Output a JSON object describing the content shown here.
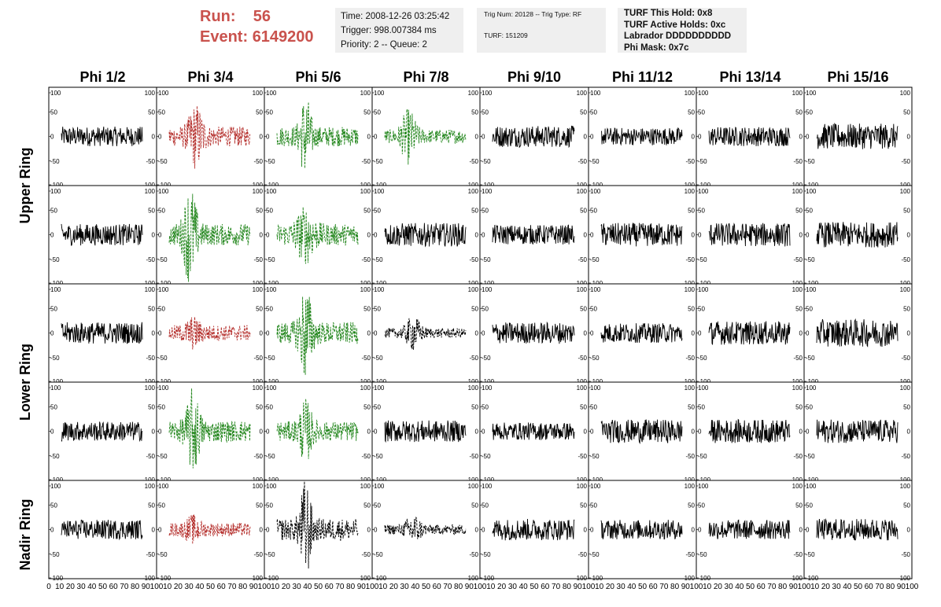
{
  "header": {
    "run_label": "Run:",
    "run_value": "56",
    "event_label": "Event:",
    "event_value": "6149200"
  },
  "info_time": {
    "line1": "Time: 2008-12-26 03:25:42",
    "line2": "Trigger: 998.007384 ms",
    "line3": "Priority: 2 -- Queue: 2"
  },
  "info_trig": {
    "line1": "Trig Num: 20128 -- Trig Type: RF",
    "line2": "TURF: 151209"
  },
  "info_turf": {
    "line1": "TURF This Hold: 0x8",
    "line2": "TURF Active Holds: 0xc",
    "line3": "Labrador DDDDDDDDDD",
    "line4": "Phi Mask: 0x7c"
  },
  "colors": {
    "black": "#000000",
    "red": "#b5302d",
    "green": "#22861c",
    "accent_text": "#c9524d"
  },
  "chart_data": {
    "type": "line",
    "columns": [
      "Phi 1/2",
      "Phi 3/4",
      "Phi 5/6",
      "Phi 7/8",
      "Phi 9/10",
      "Phi 11/12",
      "Phi 13/14",
      "Phi 15/16"
    ],
    "ring_labels": [
      "Upper Ring",
      "Lower Ring",
      "Nadir Ring"
    ],
    "y_ticks": [
      "100",
      "50",
      "0",
      "-50",
      "-100"
    ],
    "ylim": [
      -100,
      100
    ],
    "x_ticks": [
      "0",
      "10",
      "20",
      "30",
      "40",
      "50",
      "60",
      "70",
      "80",
      "90",
      "100"
    ],
    "xlim": [
      0,
      100
    ],
    "rows": [
      [
        {
          "color": "black",
          "dash": false,
          "amp": 20,
          "pulse": null
        },
        {
          "color": "red",
          "dash": true,
          "amp": 20,
          "pulse": {
            "center": 38,
            "width": 8,
            "amp": 50
          }
        },
        {
          "color": "green",
          "dash": true,
          "amp": 20,
          "pulse": {
            "center": 40,
            "width": 6,
            "amp": 72
          }
        },
        {
          "color": "green",
          "dash": true,
          "amp": 14,
          "pulse": {
            "center": 35,
            "width": 8,
            "amp": 45
          }
        },
        {
          "color": "black",
          "dash": false,
          "amp": 22,
          "pulse": null
        },
        {
          "color": "black",
          "dash": false,
          "amp": 18,
          "pulse": null
        },
        {
          "color": "black",
          "dash": false,
          "amp": 20,
          "pulse": null
        },
        {
          "color": "black",
          "dash": false,
          "amp": 26,
          "pulse": null
        }
      ],
      [
        {
          "color": "black",
          "dash": false,
          "amp": 22,
          "pulse": null
        },
        {
          "color": "green",
          "dash": true,
          "amp": 22,
          "pulse": {
            "center": 32,
            "width": 7,
            "amp": 85
          }
        },
        {
          "color": "green",
          "dash": true,
          "amp": 22,
          "pulse": {
            "center": 40,
            "width": 10,
            "amp": 40
          }
        },
        {
          "color": "black",
          "dash": false,
          "amp": 24,
          "pulse": null
        },
        {
          "color": "black",
          "dash": false,
          "amp": 20,
          "pulse": null
        },
        {
          "color": "black",
          "dash": false,
          "amp": 24,
          "pulse": null
        },
        {
          "color": "black",
          "dash": false,
          "amp": 24,
          "pulse": null
        },
        {
          "color": "black",
          "dash": false,
          "amp": 26,
          "pulse": null
        }
      ],
      [
        {
          "color": "black",
          "dash": false,
          "amp": 22,
          "pulse": null
        },
        {
          "color": "red",
          "dash": true,
          "amp": 16,
          "pulse": {
            "center": 35,
            "width": 8,
            "amp": 20
          }
        },
        {
          "color": "green",
          "dash": true,
          "amp": 22,
          "pulse": {
            "center": 40,
            "width": 7,
            "amp": 80
          }
        },
        {
          "color": "black",
          "dash": true,
          "amp": 10,
          "pulse": {
            "center": 40,
            "width": 8,
            "amp": 28
          }
        },
        {
          "color": "black",
          "dash": false,
          "amp": 22,
          "pulse": null
        },
        {
          "color": "black",
          "dash": false,
          "amp": 20,
          "pulse": null
        },
        {
          "color": "black",
          "dash": false,
          "amp": 24,
          "pulse": null
        },
        {
          "color": "black",
          "dash": false,
          "amp": 28,
          "pulse": null
        }
      ],
      [
        {
          "color": "black",
          "dash": false,
          "amp": 20,
          "pulse": null
        },
        {
          "color": "green",
          "dash": true,
          "amp": 22,
          "pulse": {
            "center": 35,
            "width": 7,
            "amp": 70
          }
        },
        {
          "color": "green",
          "dash": true,
          "amp": 20,
          "pulse": {
            "center": 40,
            "width": 7,
            "amp": 48
          }
        },
        {
          "color": "black",
          "dash": false,
          "amp": 22,
          "pulse": null
        },
        {
          "color": "black",
          "dash": false,
          "amp": 18,
          "pulse": null
        },
        {
          "color": "black",
          "dash": false,
          "amp": 24,
          "pulse": null
        },
        {
          "color": "black",
          "dash": false,
          "amp": 24,
          "pulse": null
        },
        {
          "color": "black",
          "dash": false,
          "amp": 24,
          "pulse": null
        }
      ],
      [
        {
          "color": "black",
          "dash": false,
          "amp": 20,
          "pulse": null
        },
        {
          "color": "red",
          "dash": true,
          "amp": 14,
          "pulse": {
            "center": 35,
            "width": 8,
            "amp": 18
          }
        },
        {
          "color": "black",
          "dash": true,
          "amp": 22,
          "pulse": {
            "center": 40,
            "width": 6,
            "amp": 85
          }
        },
        {
          "color": "black",
          "dash": true,
          "amp": 10,
          "pulse": {
            "center": 40,
            "width": 8,
            "amp": 25
          }
        },
        {
          "color": "black",
          "dash": false,
          "amp": 22,
          "pulse": null
        },
        {
          "color": "black",
          "dash": false,
          "amp": 20,
          "pulse": null
        },
        {
          "color": "black",
          "dash": false,
          "amp": 20,
          "pulse": null
        },
        {
          "color": "black",
          "dash": false,
          "amp": 22,
          "pulse": null
        }
      ]
    ]
  }
}
